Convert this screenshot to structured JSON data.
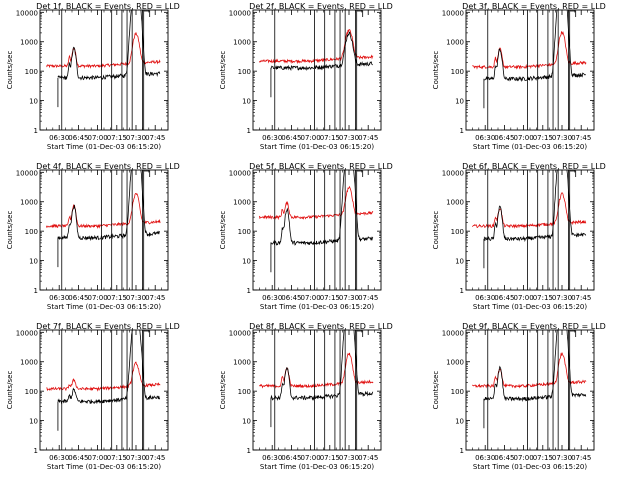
{
  "chart_data": {
    "type": "line",
    "time_axis": {
      "tick_labels": [
        "06:30",
        "06:45",
        "07:00",
        "07:15",
        "07:30",
        "07:45"
      ],
      "tick_minutes": [
        30,
        45,
        60,
        75,
        90,
        105
      ],
      "x_range_minutes": [
        15,
        115
      ],
      "xlabel": "Start Time (01-Dec-03 06:15:20)"
    },
    "y_axis": {
      "scale": "log",
      "ylim": [
        1,
        12000
      ],
      "tick_values": [
        1,
        10,
        100,
        1000,
        10000
      ],
      "tick_labels": [
        "1",
        "10",
        "100",
        "1000",
        "10000"
      ],
      "ylabel": "Counts/sec"
    },
    "vertical_markers_minutes": [
      32,
      63,
      71,
      79,
      83,
      87,
      95,
      96
    ],
    "colors": {
      "events": "#000000",
      "lld": "#e01010"
    },
    "panels": [
      {
        "title": "Det 1f, BLACK = Events, RED = LLD",
        "events": {
          "baseline": 60,
          "peaks": [
            [
              38,
              3,
              0.6
            ],
            [
              41.5,
              10,
              1.2
            ],
            [
              90,
              1500,
              1.8
            ]
          ],
          "start_min": 29,
          "end_min": 109
        },
        "lld": {
          "baseline": 150,
          "peaks": [
            [
              38,
              2,
              0.6
            ],
            [
              41.5,
              4,
              1.2
            ],
            [
              90,
              10,
              1.8
            ]
          ],
          "start_min": 20,
          "end_min": 109
        }
      },
      {
        "title": "Det 2f, BLACK = Events, RED = LLD",
        "events": {
          "baseline": 130,
          "peaks": [
            [
              90,
              12,
              2.0
            ]
          ],
          "start_min": 29,
          "end_min": 109
        },
        "lld": {
          "baseline": 220,
          "peaks": [
            [
              90,
              9,
              2.0
            ]
          ],
          "start_min": 20,
          "end_min": 109
        }
      },
      {
        "title": "Det 3f, BLACK = Events, RED = LLD",
        "events": {
          "baseline": 55,
          "peaks": [
            [
              38,
              2.5,
              0.6
            ],
            [
              41.5,
              10,
              1.2
            ],
            [
              90,
              2000,
              1.8
            ]
          ],
          "start_min": 29,
          "end_min": 109
        },
        "lld": {
          "baseline": 140,
          "peaks": [
            [
              38,
              2,
              0.6
            ],
            [
              41.5,
              4,
              1.2
            ],
            [
              90,
              12,
              1.8
            ]
          ],
          "start_min": 20,
          "end_min": 109
        }
      },
      {
        "title": "Det 4f, BLACK = Events, RED = LLD",
        "events": {
          "baseline": 60,
          "peaks": [
            [
              38,
              3,
              0.6
            ],
            [
              41.5,
              12,
              1.2
            ],
            [
              90,
              1500,
              1.8
            ]
          ],
          "start_min": 29,
          "end_min": 109
        },
        "lld": {
          "baseline": 150,
          "peaks": [
            [
              38,
              2,
              0.6
            ],
            [
              41.5,
              5,
              1.2
            ],
            [
              90,
              10,
              1.8
            ]
          ],
          "start_min": 20,
          "end_min": 109
        }
      },
      {
        "title": "Det 5f, BLACK = Events, RED = LLD",
        "events": {
          "baseline": 40,
          "peaks": [
            [
              38,
              3,
              0.6
            ],
            [
              41.5,
              14,
              1.2
            ],
            [
              90,
              1800,
              1.8
            ]
          ],
          "start_min": 29,
          "end_min": 109
        },
        "lld": {
          "baseline": 300,
          "peaks": [
            [
              38,
              1.8,
              0.6
            ],
            [
              41.5,
              3,
              1.2
            ],
            [
              90,
              8,
              1.8
            ]
          ],
          "start_min": 20,
          "end_min": 109
        }
      },
      {
        "title": "Det 6f, BLACK = Events, RED = LLD",
        "events": {
          "baseline": 55,
          "peaks": [
            [
              38,
              3,
              0.6
            ],
            [
              41.5,
              12,
              1.2
            ],
            [
              90,
              1800,
              1.8
            ]
          ],
          "start_min": 29,
          "end_min": 109
        },
        "lld": {
          "baseline": 150,
          "peaks": [
            [
              38,
              2,
              0.6
            ],
            [
              41.5,
              4,
              1.2
            ],
            [
              90,
              10,
              1.8
            ]
          ],
          "start_min": 20,
          "end_min": 109
        }
      },
      {
        "title": "Det 7f, BLACK = Events, RED = LLD",
        "events": {
          "baseline": 45,
          "peaks": [
            [
              38,
              1.6,
              0.6
            ],
            [
              41.5,
              2.5,
              1.2
            ],
            [
              90,
              800,
              1.8
            ]
          ],
          "start_min": 29,
          "end_min": 109
        },
        "lld": {
          "baseline": 120,
          "peaks": [
            [
              38,
              1.4,
              0.6
            ],
            [
              41.5,
              2,
              1.2
            ],
            [
              90,
              6,
              1.8
            ]
          ],
          "start_min": 20,
          "end_min": 109
        }
      },
      {
        "title": "Det 8f, BLACK = Events, RED = LLD",
        "events": {
          "baseline": 60,
          "peaks": [
            [
              38,
              3,
              0.6
            ],
            [
              41.5,
              10,
              1.2
            ],
            [
              90,
              1500,
              1.8
            ]
          ],
          "start_min": 29,
          "end_min": 109
        },
        "lld": {
          "baseline": 150,
          "peaks": [
            [
              38,
              2,
              0.6
            ],
            [
              41.5,
              4,
              1.2
            ],
            [
              90,
              10,
              1.8
            ]
          ],
          "start_min": 20,
          "end_min": 109
        }
      },
      {
        "title": "Det 9f, BLACK = Events, RED = LLD",
        "events": {
          "baseline": 55,
          "peaks": [
            [
              38,
              3,
              0.6
            ],
            [
              41.5,
              12,
              1.2
            ],
            [
              90,
              1800,
              1.8
            ]
          ],
          "start_min": 29,
          "end_min": 109
        },
        "lld": {
          "baseline": 150,
          "peaks": [
            [
              38,
              2,
              0.6
            ],
            [
              41.5,
              4,
              1.2
            ],
            [
              90,
              10,
              1.8
            ]
          ],
          "start_min": 20,
          "end_min": 109
        }
      }
    ]
  }
}
